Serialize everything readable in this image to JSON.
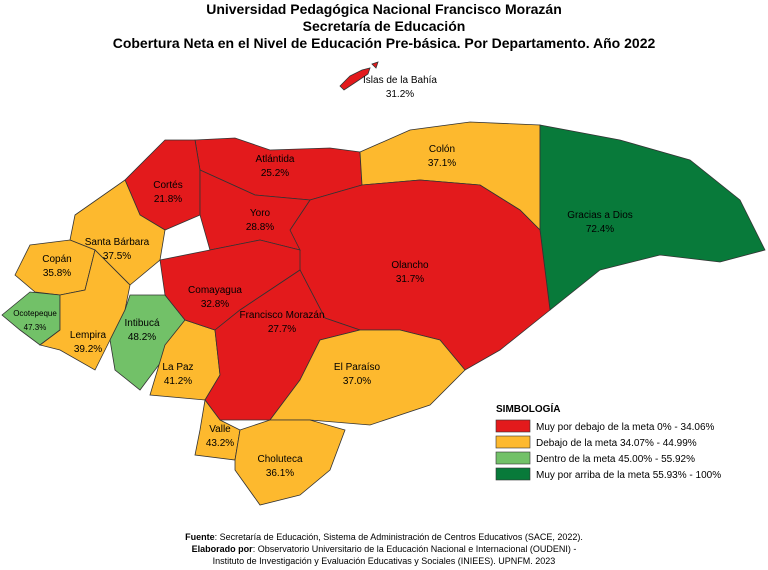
{
  "header": {
    "title": [
      "Universidad Pedagógica Nacional Francisco Morazán",
      "Secretaría de Educación",
      "Cobertura Neta en el Nivel de Educación Pre-básica. Por Departamento. Año 2022"
    ]
  },
  "regions": [
    {
      "name": "Islas de la Bahía",
      "label": "31.2%",
      "color": "#e31a1c"
    },
    {
      "name": "Atlántida",
      "label": "25.2%",
      "color": "#e31a1c"
    },
    {
      "name": "Cortés",
      "label": "21.8%",
      "color": "#e31a1c"
    },
    {
      "name": "Colón",
      "label": "37.1%",
      "color": "#fdb92e"
    },
    {
      "name": "Gracias a Dios",
      "label": "72.4%",
      "color": "#087a3a"
    },
    {
      "name": "Olancho",
      "label": "31.7%",
      "color": "#e31a1c"
    },
    {
      "name": "Yoro",
      "label": "28.8%",
      "color": "#e31a1c"
    },
    {
      "name": "Santa Bárbara",
      "label": "37.5%",
      "color": "#fdb92e"
    },
    {
      "name": "Copán",
      "label": "35.8%",
      "color": "#fdb92e"
    },
    {
      "name": "Ocotepeque",
      "label": "47.3%",
      "color": "#72c168"
    },
    {
      "name": "Lempira",
      "label": "39.2%",
      "color": "#fdb92e"
    },
    {
      "name": "Intibucá",
      "label": "48.2%",
      "color": "#72c168"
    },
    {
      "name": "La Paz",
      "label": "41.2%",
      "color": "#fdb92e"
    },
    {
      "name": "Comayagua",
      "label": "32.8%",
      "color": "#e31a1c"
    },
    {
      "name": "Francisco Morazán",
      "label": "27.7%",
      "color": "#e31a1c"
    },
    {
      "name": "El Paraíso",
      "label": "37.0%",
      "color": "#fdb92e"
    },
    {
      "name": "Valle",
      "label": "43.2%",
      "color": "#fdb92e"
    },
    {
      "name": "Choluteca",
      "label": "36.1%",
      "color": "#fdb92e"
    }
  ],
  "legend": {
    "title": "SIMBOLOGÍA",
    "items": [
      {
        "label": "Muy por debajo de la meta 0% - 34.06%",
        "color": "#e31a1c"
      },
      {
        "label": "Debajo de la meta 34.07% - 44.99%",
        "color": "#fdb92e"
      },
      {
        "label": "Dentro de la meta 45.00% - 55.92%",
        "color": "#72c168"
      },
      {
        "label": "Muy por arriba de la meta 55.93% - 100%",
        "color": "#087a3a"
      }
    ]
  },
  "footer": {
    "source_label": "Fuente",
    "source": ": Secretaría de Educación, Sistema de Administración de Centros Educativos (SACE, 2022).",
    "made_label": "Elaborado por",
    "made": ": Observatorio Universitario de la Educación Nacional e Internacional (OUDENI) -",
    "made2": "Instituto de Investigación y Evaluación Educativas y Sociales (INIEES). UPNFM. 2023"
  }
}
